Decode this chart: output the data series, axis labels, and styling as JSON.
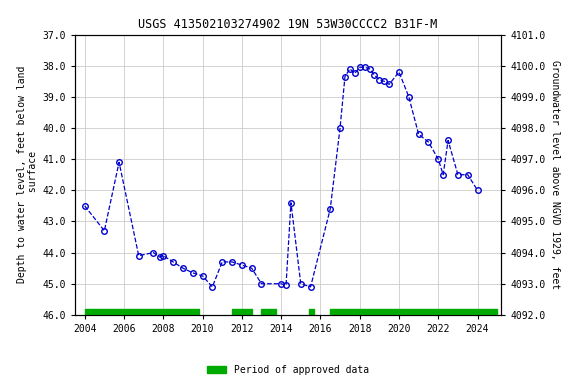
{
  "title": "USGS 413502103274902 19N 53W30CCCC2 B31F-M",
  "ylabel_left": "Depth to water level, feet below land\n surface",
  "ylabel_right": "Groundwater level above NGVD 1929, feet",
  "ylim_left": [
    46.0,
    37.0
  ],
  "ylim_right": [
    4092.0,
    4101.0
  ],
  "xlim": [
    2003.5,
    2025.2
  ],
  "yticks_left": [
    37.0,
    38.0,
    39.0,
    40.0,
    41.0,
    42.0,
    43.0,
    44.0,
    45.0,
    46.0
  ],
  "yticks_right": [
    4092.0,
    4093.0,
    4094.0,
    4095.0,
    4096.0,
    4097.0,
    4098.0,
    4099.0,
    4100.0,
    4101.0
  ],
  "xticks": [
    2004,
    2006,
    2008,
    2010,
    2012,
    2014,
    2016,
    2018,
    2020,
    2022,
    2024
  ],
  "data_x": [
    2004.0,
    2005.0,
    2005.75,
    2006.75,
    2007.5,
    2007.83,
    2008.0,
    2008.5,
    2009.0,
    2009.5,
    2010.0,
    2010.5,
    2011.0,
    2011.5,
    2012.0,
    2012.5,
    2013.0,
    2014.0,
    2014.25,
    2014.5,
    2015.0,
    2015.5,
    2016.5,
    2017.0,
    2017.25,
    2017.5,
    2017.75,
    2018.0,
    2018.25,
    2018.5,
    2018.75,
    2019.0,
    2019.25,
    2019.5,
    2020.0,
    2020.5,
    2021.0,
    2021.5,
    2022.0,
    2022.25,
    2022.5,
    2023.0,
    2023.5,
    2024.0
  ],
  "data_y": [
    42.5,
    43.3,
    41.1,
    44.1,
    44.0,
    44.15,
    44.1,
    44.3,
    44.5,
    44.65,
    44.75,
    45.1,
    44.3,
    44.3,
    44.4,
    44.5,
    45.0,
    45.0,
    45.05,
    42.4,
    45.0,
    45.1,
    42.6,
    40.0,
    38.35,
    38.1,
    38.25,
    38.05,
    38.05,
    38.1,
    38.3,
    38.45,
    38.5,
    38.6,
    38.2,
    39.0,
    40.2,
    40.45,
    41.0,
    41.5,
    40.4,
    41.5,
    41.5,
    42.0
  ],
  "line_color": "#0000cc",
  "marker_color": "#0000cc",
  "line_style": "--",
  "marker_style": "o",
  "marker_size": 4,
  "background_color": "#ffffff",
  "plot_bg_color": "#ffffff",
  "grid_color": "#cccccc",
  "approved_periods": [
    [
      2004.0,
      2009.83
    ],
    [
      2011.5,
      2012.5
    ],
    [
      2013.0,
      2013.75
    ],
    [
      2015.4,
      2015.65
    ],
    [
      2016.5,
      2025.0
    ]
  ],
  "approved_color": "#00aa00",
  "approved_bar_y": 46.0,
  "approved_bar_thickness": 0.18,
  "legend_label": "Period of approved data",
  "font_family": "monospace",
  "title_fontsize": 8.5,
  "tick_fontsize": 7,
  "label_fontsize": 7
}
